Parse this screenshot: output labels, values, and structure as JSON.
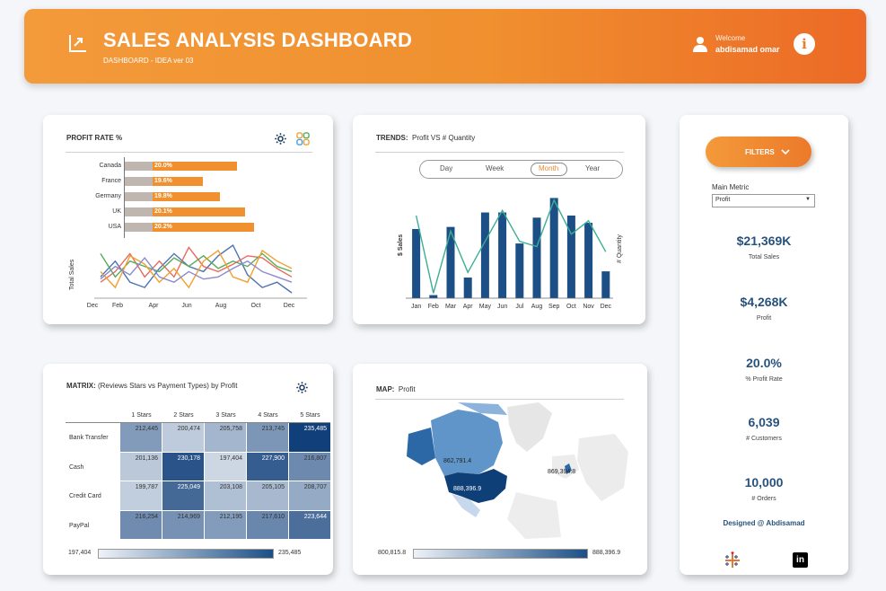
{
  "header": {
    "title": "SALES ANALYSIS DASHBOARD",
    "subtitle": "DASHBOARD - IDEA ver 03",
    "welcome": "Welcome",
    "username": "abdisamad omar",
    "info": "i",
    "logo_icon": "chart-arrow-icon",
    "user_icon": "user-icon",
    "accent": "#ef8a31"
  },
  "profit_rate": {
    "title": "PROFIT RATE %",
    "bar_color": "#f0902f",
    "base_color": "#bfb6b0",
    "rows": [
      {
        "country": "Canada",
        "label": "20.0%",
        "value": 20.0
      },
      {
        "country": "France",
        "label": "19.6%",
        "value": 19.6
      },
      {
        "country": "Germany",
        "label": "19.8%",
        "value": 19.8
      },
      {
        "country": "UK",
        "label": "20.1%",
        "value": 20.1
      },
      {
        "country": "USA",
        "label": "20.2%",
        "value": 20.2
      }
    ],
    "sparkline": {
      "ylabel": "Total Sales",
      "ticks": [
        "Dec",
        "Feb",
        "Apr",
        "Jun",
        "Aug",
        "Oct",
        "Dec"
      ],
      "series": [
        {
          "color": "#4c72b0",
          "values": [
            40,
            55,
            35,
            30,
            48,
            62,
            50,
            45,
            60,
            70,
            42,
            30,
            35,
            25
          ]
        },
        {
          "color": "#e86a5d",
          "values": [
            35,
            45,
            62,
            40,
            55,
            40,
            68,
            50,
            45,
            52,
            60,
            58,
            48,
            40
          ]
        },
        {
          "color": "#5aaa5a",
          "values": [
            62,
            40,
            55,
            50,
            45,
            58,
            50,
            60,
            48,
            55,
            50,
            62,
            50,
            45
          ]
        },
        {
          "color": "#f0a030",
          "values": [
            45,
            30,
            60,
            52,
            35,
            48,
            30,
            55,
            65,
            40,
            35,
            65,
            55,
            48
          ]
        },
        {
          "color": "#8a8ad0",
          "values": [
            38,
            50,
            42,
            58,
            40,
            35,
            45,
            38,
            40,
            48,
            55,
            45,
            40,
            35
          ]
        }
      ]
    }
  },
  "trends": {
    "title_bold": "TRENDS:",
    "title_rest": "Profit VS # Quantity",
    "segments": [
      "Day",
      "Week",
      "Month",
      "Year"
    ],
    "active_segment": "Month",
    "active_color": "#ef8a31",
    "chart_data": {
      "type": "bar",
      "categories": [
        "Jan",
        "Feb",
        "Mar",
        "Apr",
        "May",
        "Jun",
        "Jul",
        "Aug",
        "Sep",
        "Oct",
        "Nov",
        "Dec"
      ],
      "ylabel": "$ Sales",
      "y2label": "# Quantity",
      "ylim": [
        0,
        100
      ],
      "series": [
        {
          "type": "bar",
          "color": "#1c4f86",
          "values": [
            67,
            3,
            69,
            20,
            83,
            83,
            53,
            78,
            97,
            80,
            73,
            26
          ]
        },
        {
          "type": "line",
          "color": "#3cae93",
          "values": [
            80,
            5,
            65,
            25,
            55,
            85,
            55,
            50,
            95,
            62,
            75,
            45
          ]
        }
      ]
    }
  },
  "filters": {
    "button_label": "FILTERS",
    "chevron_icon": "chevron-down-icon",
    "main_metric_label": "Main Metric",
    "main_metric_value": "Profit",
    "kpis": [
      {
        "value": "$21,369K",
        "label": "Total Sales"
      },
      {
        "value": "$4,268K",
        "label": "Profit"
      },
      {
        "value": "20.0%",
        "label": "% Profit Rate"
      },
      {
        "value": "6,039",
        "label": "# Customers"
      },
      {
        "value": "10,000",
        "label": "# Orders"
      }
    ],
    "designed_by": "Designed @ Abdisamad"
  },
  "matrix": {
    "title_bold": "MATRIX:",
    "title_rest": "(Reviews Stars vs Payment Types) by Profit",
    "columns": [
      "1 Stars",
      "2 Stars",
      "3 Stars",
      "4 Stars",
      "5 Stars"
    ],
    "rows": [
      {
        "name": "Bank Transfer",
        "values": [
          "212,445",
          "200,474",
          "205,758",
          "213,745",
          "235,485"
        ],
        "nums": [
          212445,
          200474,
          205758,
          213745,
          235485
        ]
      },
      {
        "name": "Cash",
        "values": [
          "201,136",
          "230,178",
          "197,404",
          "227,900",
          "216,807"
        ],
        "nums": [
          201136,
          230178,
          197404,
          227900,
          216807
        ]
      },
      {
        "name": "Credit Card",
        "values": [
          "199,787",
          "225,049",
          "203,108",
          "205,105",
          "208,707"
        ],
        "nums": [
          199787,
          225049,
          203108,
          205105,
          208707
        ]
      },
      {
        "name": "PayPal",
        "values": [
          "216,254",
          "214,969",
          "212,195",
          "217,610",
          "223,644"
        ],
        "nums": [
          216254,
          214969,
          212195,
          217610,
          223644
        ]
      }
    ],
    "legend_min": "197,404",
    "legend_max": "235,485",
    "min": 197404,
    "max": 235485
  },
  "map": {
    "title_bold": "MAP:",
    "title_rest": "Profit",
    "labels": [
      {
        "text": "862,791.4"
      },
      {
        "text": "888,396.9"
      },
      {
        "text": "869,394.8"
      }
    ],
    "legend_min": "800,815.8",
    "legend_max": "888,396.9"
  }
}
